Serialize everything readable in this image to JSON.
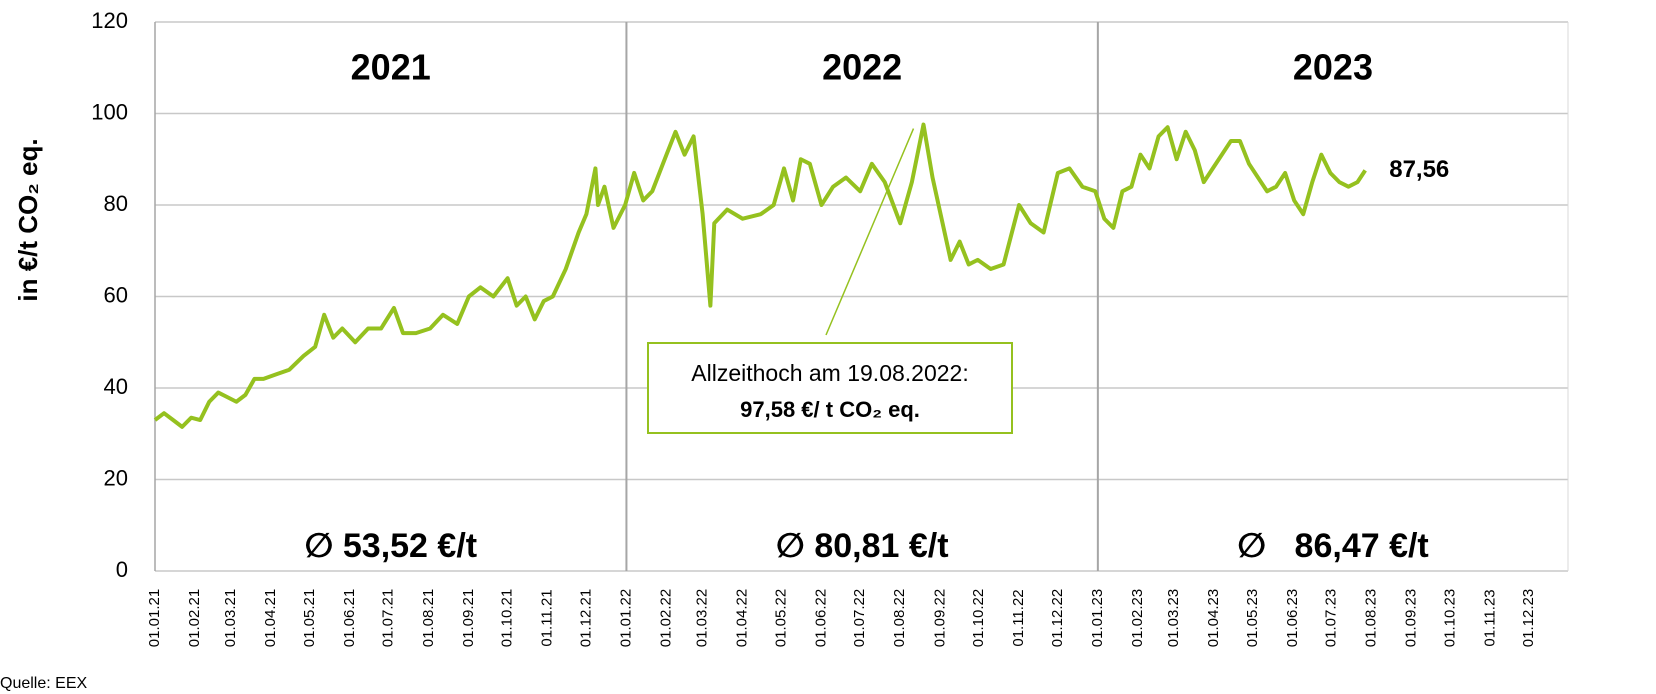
{
  "chart_data": {
    "type": "line",
    "y_label": "in €/t CO₂ eq.",
    "source": "Quelle: EEX",
    "xlim": [
      "01.01.21",
      "31.12.23"
    ],
    "ylim": [
      0,
      120
    ],
    "yticks": [
      0,
      20,
      40,
      60,
      80,
      100,
      120
    ],
    "xticks": [
      "01.01.21",
      "01.02.21",
      "01.03.21",
      "01.04.21",
      "01.05.21",
      "01.06.21",
      "01.07.21",
      "01.08.21",
      "01.09.21",
      "01.10.21",
      "01.11.21",
      "01.12.21",
      "01.01.22",
      "01.02.22",
      "01.03.22",
      "01.04.22",
      "01.05.22",
      "01.06.22",
      "01.07.22",
      "01.08.22",
      "01.09.22",
      "01.10.22",
      "01.11.22",
      "01.12.22",
      "01.01.23",
      "01.02.23",
      "01.03.23",
      "01.04.23",
      "01.05.23",
      "01.06.23",
      "01.07.23",
      "01.08.23",
      "01.09.23",
      "01.10.23",
      "01.11.23",
      "01.12.23"
    ],
    "grid": true,
    "year_labels": [
      "2021",
      "2022",
      "2023"
    ],
    "average_labels": [
      "∅ 53,52 €/t",
      "∅ 80,81 €/t",
      "∅   86,47 €/t"
    ],
    "x": [
      "01.01.21",
      "08.01.21",
      "15.01.21",
      "22.01.21",
      "29.01.21",
      "05.02.21",
      "12.02.21",
      "19.02.21",
      "26.02.21",
      "05.03.21",
      "12.03.21",
      "19.03.21",
      "26.03.21",
      "05.04.21",
      "15.04.21",
      "26.04.21",
      "05.05.21",
      "12.05.21",
      "19.05.21",
      "26.05.21",
      "05.06.21",
      "15.06.21",
      "25.06.21",
      "05.07.21",
      "12.07.21",
      "22.07.21",
      "02.08.21",
      "12.08.21",
      "23.08.21",
      "01.09.21",
      "10.09.21",
      "20.09.21",
      "01.10.21",
      "08.10.21",
      "15.10.21",
      "22.10.21",
      "29.10.21",
      "05.11.21",
      "15.11.21",
      "25.11.21",
      "01.12.21",
      "08.12.21",
      "10.12.21",
      "15.12.21",
      "22.12.21",
      "31.12.21",
      "07.01.22",
      "14.01.22",
      "21.01.22",
      "01.02.22",
      "08.02.22",
      "15.02.22",
      "22.02.22",
      "01.03.22",
      "04.03.22",
      "07.03.22",
      "10.03.22",
      "20.03.22",
      "01.04.22",
      "15.04.22",
      "25.04.22",
      "03.05.22",
      "10.05.22",
      "16.05.22",
      "23.05.22",
      "01.06.22",
      "10.06.22",
      "20.06.22",
      "01.07.22",
      "10.07.22",
      "20.07.22",
      "01.08.22",
      "10.08.22",
      "19.08.22",
      "26.08.22",
      "02.09.22",
      "09.09.22",
      "16.09.22",
      "23.09.22",
      "30.09.22",
      "10.10.22",
      "20.10.22",
      "01.11.22",
      "10.11.22",
      "20.11.22",
      "01.12.22",
      "10.12.22",
      "20.12.22",
      "30.12.22",
      "06.01.23",
      "13.01.23",
      "20.01.23",
      "27.01.23",
      "03.02.23",
      "10.02.23",
      "17.02.23",
      "24.02.23",
      "03.03.23",
      "10.03.23",
      "17.03.23",
      "24.03.23",
      "31.03.23",
      "07.04.23",
      "14.04.23",
      "21.04.23",
      "28.04.23",
      "05.05.23",
      "12.05.23",
      "19.05.23",
      "26.05.23",
      "02.06.23",
      "09.06.23",
      "16.06.23",
      "23.06.23",
      "30.06.23",
      "07.07.23",
      "14.07.23",
      "21.07.23",
      "27.07.23"
    ],
    "series": [
      {
        "color": "#95c11f",
        "values": [
          33,
          34.5,
          33,
          31.5,
          33.5,
          33,
          37,
          39,
          38,
          37,
          38.5,
          42,
          42,
          43,
          44,
          47,
          49,
          56,
          51,
          53,
          50,
          53,
          53,
          57.5,
          52,
          52,
          53,
          56,
          54,
          60,
          62,
          60,
          64,
          58,
          60,
          55,
          59,
          60,
          66,
          74,
          78,
          88,
          80,
          84,
          75,
          80,
          87,
          81,
          83,
          91,
          96,
          91,
          95,
          78,
          68,
          58,
          76,
          79,
          77,
          78,
          80,
          88,
          81,
          90,
          89,
          80,
          84,
          86,
          83,
          89,
          85,
          76,
          85,
          97.58,
          86,
          77,
          68,
          72,
          67,
          68,
          66,
          67,
          80,
          76,
          74,
          87,
          88,
          84,
          83,
          77,
          75,
          83,
          84,
          91,
          88,
          95,
          97,
          90,
          96,
          92,
          85,
          88,
          91,
          94,
          94,
          89,
          86,
          83,
          84,
          87,
          81,
          78,
          85,
          91,
          87,
          85,
          84,
          85,
          87.56
        ]
      }
    ],
    "last_label": {
      "text": "87,56",
      "x": "27.07.23",
      "y": 87.56
    },
    "callout": {
      "lines": [
        "Allzeithoch am 19.08.2022:",
        "97,58 €/ t CO₂ eq."
      ],
      "x": "19.08.22",
      "y": 97.58
    }
  }
}
